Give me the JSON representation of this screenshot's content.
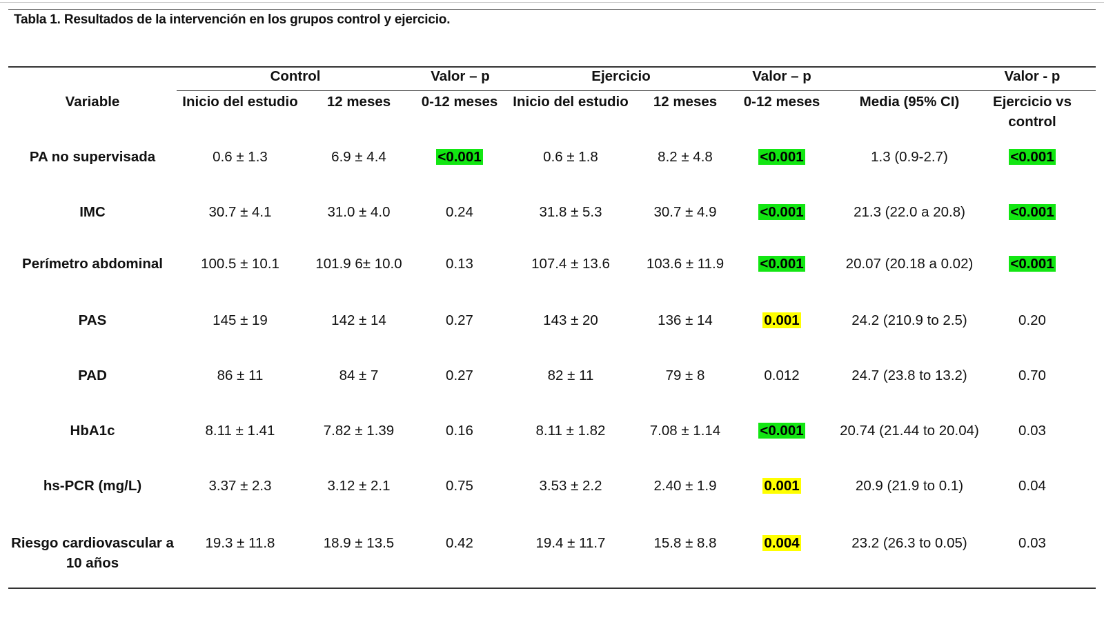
{
  "caption": "Tabla 1. Resultados de la intervención en los grupos control y ejercicio.",
  "colors": {
    "green_highlight": "#12e612",
    "yellow_highlight": "#ffff00"
  },
  "header": {
    "variable": "Variable",
    "control": "Control",
    "valor_p_control": "Valor – p",
    "ejercicio": "Ejercicio",
    "valor_p_ejercicio": "Valor – p",
    "valor_p_vs": "Valor - p",
    "sub": {
      "control_inicio": "Inicio del estudio",
      "control_12": "12 meses",
      "control_p": "0-12  meses",
      "ejercicio_inicio": "Inicio del estudio",
      "ejercicio_12": "12 meses",
      "ejercicio_p": "0-12  meses",
      "media": "Media (95% CI)",
      "vs_line1": "Ejercicio vs",
      "vs_line2": "control"
    }
  },
  "rows": [
    {
      "variable": "PA no supervisada",
      "c_ini": "0.6 ± 1.3",
      "c_12": "6.9 ± 4.4",
      "c_p": {
        "text": "<0.001",
        "hl": "green"
      },
      "e_ini": "0.6 ± 1.8",
      "e_12": "8.2 ± 4.8",
      "e_p": {
        "text": "<0.001",
        "hl": "green"
      },
      "media": "1.3 (0.9-2.7)",
      "vs_p": {
        "text": "<0.001",
        "hl": "green"
      }
    },
    {
      "variable": "IMC",
      "c_ini": "30.7 ±  4.1",
      "c_12": "31.0 ±  4.0",
      "c_p": {
        "text": "0.24",
        "hl": ""
      },
      "e_ini": "31.8 ±  5.3",
      "e_12": "30.7 ±  4.9",
      "e_p": {
        "text": "<0.001",
        "hl": "green"
      },
      "media": "21.3 (22.0 a 20.8)",
      "vs_p": {
        "text": "<0.001",
        "hl": "green"
      }
    },
    {
      "variable": "Perímetro abdominal",
      "c_ini": "100.5 ±  10.1",
      "c_12": "101.9 6± 10.0",
      "c_p": {
        "text": "0.13",
        "hl": ""
      },
      "e_ini": "107.4 ±  13.6",
      "e_12": "103.6 ±  11.9",
      "e_p": {
        "text": "<0.001",
        "hl": "green"
      },
      "media": "20.07 (20.18 a 0.02)",
      "vs_p": {
        "text": "<0.001",
        "hl": "green"
      }
    },
    {
      "variable": "PAS",
      "c_ini": "145  ±  19",
      "c_12": "142  ±  14",
      "c_p": {
        "text": "0.27",
        "hl": ""
      },
      "e_ini": "143  ±  20",
      "e_12": "136 ± 14",
      "e_p": {
        "text": "0.001",
        "hl": "yellow"
      },
      "media": "24.2 (210.9 to 2.5)",
      "vs_p": {
        "text": "0.20",
        "hl": ""
      }
    },
    {
      "variable": "PAD",
      "c_ini": "86  ±  11",
      "c_12": "84  ±  7",
      "c_p": {
        "text": "0.27",
        "hl": ""
      },
      "e_ini": "82  ±  11",
      "e_12": "79  ±  8",
      "e_p": {
        "text": "0.012",
        "hl": ""
      },
      "media": "24.7 (23.8 to 13.2)",
      "vs_p": {
        "text": "0.70",
        "hl": ""
      }
    },
    {
      "variable": "HbA1c",
      "c_ini": "8.11  ±  1.41",
      "c_12": "7.82  ±  1.39",
      "c_p": {
        "text": "0.16",
        "hl": ""
      },
      "e_ini": "8.11  ±  1.82",
      "e_12": "7.08 ±  1.14",
      "e_p": {
        "text": "<0.001",
        "hl": "green"
      },
      "media": "20.74 (21.44 to 20.04)",
      "vs_p": {
        "text": "0.03",
        "hl": ""
      }
    },
    {
      "variable": "hs-PCR (mg/L)",
      "c_ini": "3.37  ±  2.3",
      "c_12": "3.12  ±  2.1",
      "c_p": {
        "text": "0.75",
        "hl": ""
      },
      "e_ini": "3.53  ±  2.2",
      "e_12": "2.40  ±  1.9",
      "e_p": {
        "text": "0.001",
        "hl": "yellow"
      },
      "media": "20.9 (21.9 to 0.1)",
      "vs_p": {
        "text": "0.04",
        "hl": ""
      }
    },
    {
      "variable": "Riesgo cardiovascular a 10 años",
      "c_ini": "19.3  ±  11.8",
      "c_12": "18.9  ±  13.5",
      "c_p": {
        "text": "0.42",
        "hl": ""
      },
      "e_ini": "19.4  ±  11.7",
      "e_12": "15.8  ±  8.8",
      "e_p": {
        "text": "0.004",
        "hl": "yellow"
      },
      "media": "23.2 (26.3 to 0.05)",
      "vs_p": {
        "text": "0.03",
        "hl": ""
      }
    }
  ]
}
